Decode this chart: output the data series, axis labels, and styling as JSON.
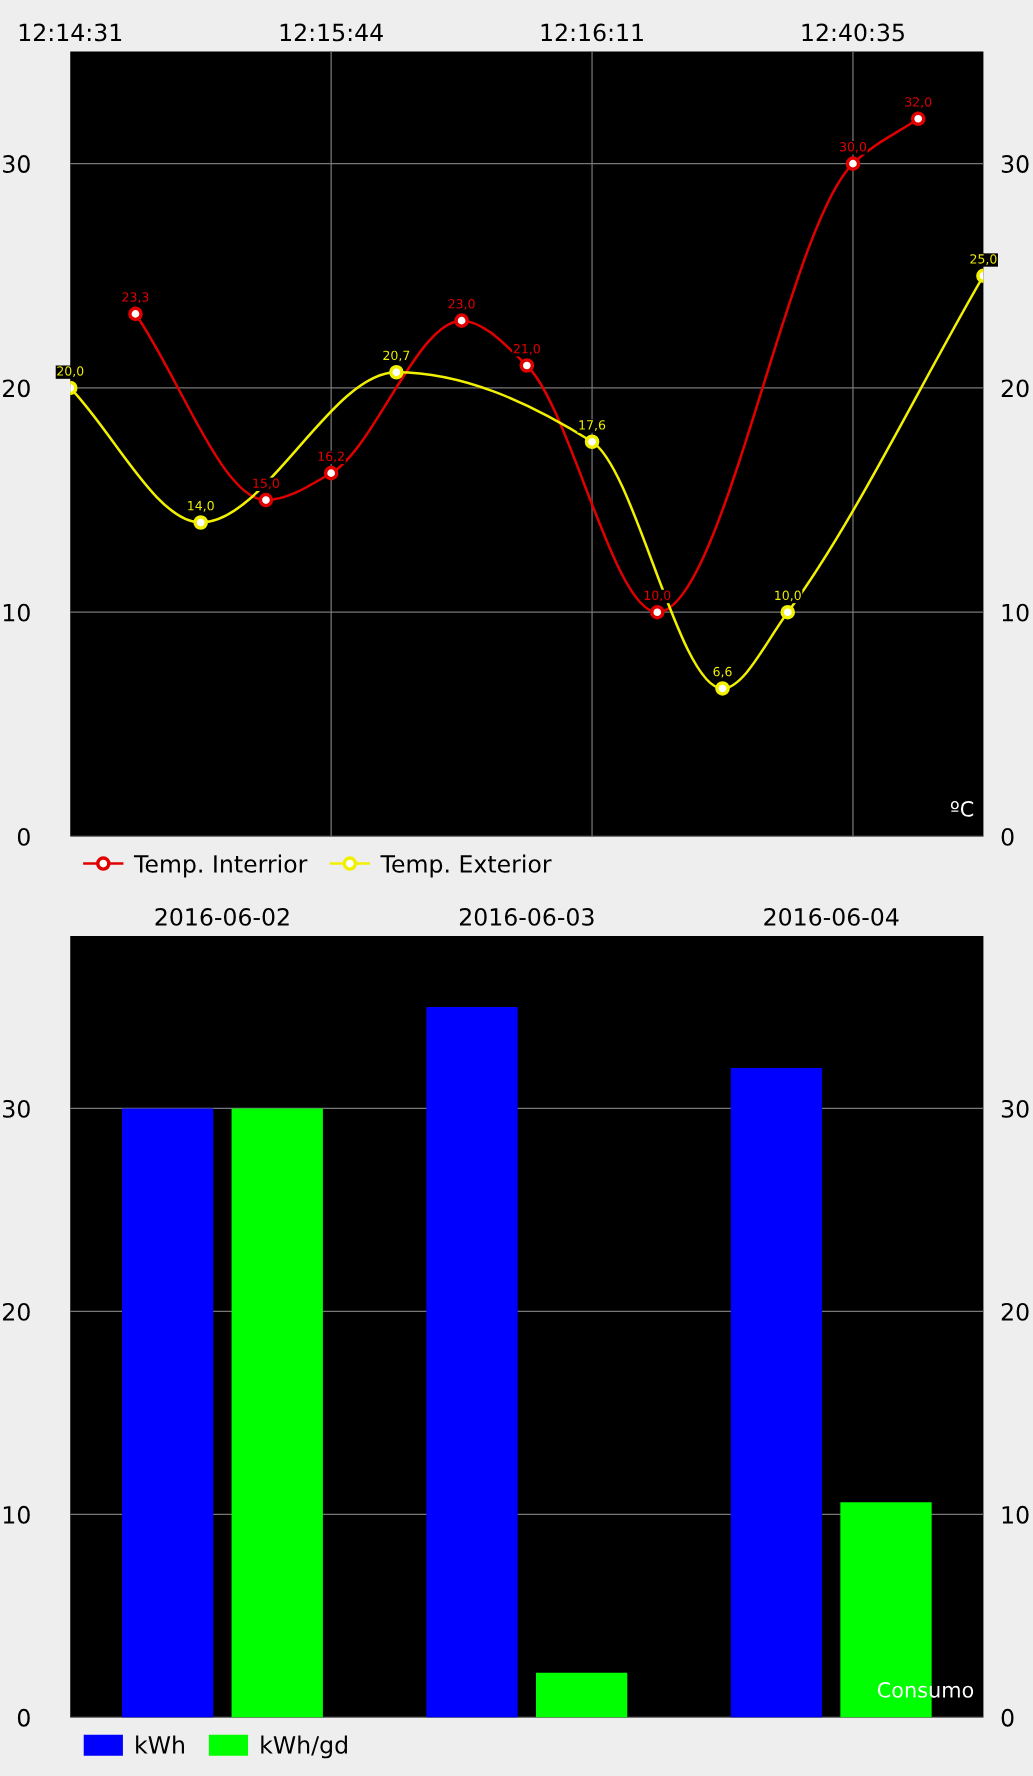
{
  "chart_data": [
    {
      "type": "line",
      "categories": [
        "12:14:31",
        null,
        null,
        null,
        "12:15:44",
        null,
        null,
        null,
        "12:16:11",
        null,
        null,
        null,
        "12:40:35",
        null,
        null
      ],
      "ylim": [
        0,
        35
      ],
      "yticks": [
        0,
        10,
        20,
        30
      ],
      "y2lim": [
        0,
        35
      ],
      "y2ticks": [
        0,
        10,
        20,
        30
      ],
      "grid": true,
      "legend": "bottom left",
      "marker": "circle",
      "line_style": "solid",
      "annotations": [
        "ºC"
      ],
      "series": [
        {
          "name": "Temp. Interrior",
          "color": "#e00000",
          "values": [
            null,
            23.3,
            null,
            15.0,
            16.2,
            null,
            23.0,
            21.0,
            null,
            10.0,
            null,
            null,
            30.0,
            32.0,
            null
          ],
          "value_labels": [
            null,
            "23,3",
            null,
            "15,0",
            "16,2",
            null,
            "23,0",
            "21,0",
            null,
            "10,0",
            null,
            null,
            "30,0",
            "32,0",
            null
          ]
        },
        {
          "name": "Temp. Exterior",
          "color": "#f0f000",
          "values": [
            20.0,
            null,
            14.0,
            null,
            null,
            20.7,
            null,
            null,
            17.6,
            null,
            6.6,
            10.0,
            null,
            null,
            25.0
          ],
          "value_labels": [
            "20,0",
            null,
            "14,0",
            null,
            null,
            "20,7",
            null,
            null,
            "17,6",
            null,
            "6,6",
            "10,0",
            null,
            null,
            "25,0"
          ]
        }
      ]
    },
    {
      "type": "bar",
      "categories": [
        "2016-06-02",
        "2016-06-03",
        "2016-06-04"
      ],
      "ylim": [
        0,
        38.5
      ],
      "yticks": [
        0,
        10,
        20,
        30
      ],
      "y2lim": [
        0,
        38.5
      ],
      "y2ticks": [
        0,
        10,
        20,
        30
      ],
      "grid": true,
      "legend": "bottom left",
      "annotations": [
        "Consumo"
      ],
      "series": [
        {
          "name": "kWh",
          "color": "#0000ff",
          "values": [
            30,
            35,
            32
          ]
        },
        {
          "name": "kWh/gd",
          "color": "#00ff00",
          "values": [
            30,
            2.2,
            10.6
          ]
        }
      ]
    }
  ]
}
